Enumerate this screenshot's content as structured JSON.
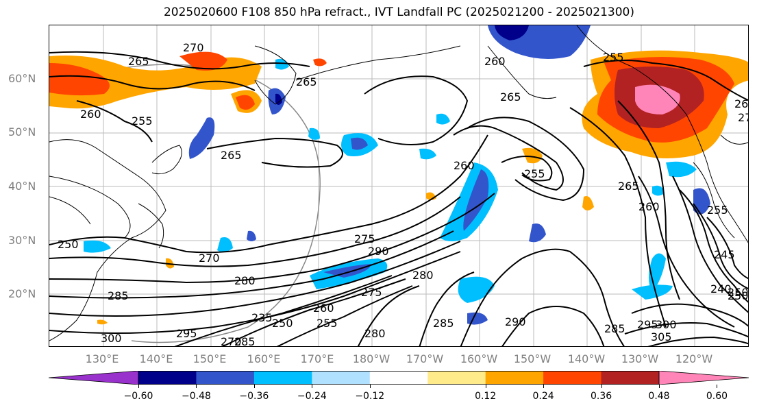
{
  "title": "2025020600 F108 850 hPa refract., IVT Landfall PC (2025021200 - 2025021300)",
  "lat_labels": [
    "60°N",
    "50°N",
    "40°N",
    "30°N",
    "20°N"
  ],
  "lon_labels": [
    "130°E",
    "140°E",
    "150°E",
    "160°E",
    "170°E",
    "180°W",
    "170°W",
    "160°W",
    "150°W",
    "140°W",
    "130°W",
    "120°W"
  ],
  "colorbar": {
    "colors": [
      "#9932cc",
      "#00008b",
      "#3355cc",
      "#00bfff",
      "#b0e2ff",
      "#ffffff",
      "#ffeb8a",
      "#ffa500",
      "#ff4500",
      "#b22222",
      "#ff85b8"
    ],
    "tick_labels": [
      "−0.60",
      "−0.48",
      "−0.36",
      "−0.24",
      "−0.12",
      "0.12",
      "0.24",
      "0.36",
      "0.48",
      "0.60"
    ]
  },
  "contour_labels": [
    {
      "text": "270"
    },
    {
      "text": "265"
    },
    {
      "text": "260"
    },
    {
      "text": "255"
    },
    {
      "text": "265"
    },
    {
      "text": "265"
    },
    {
      "text": "260"
    },
    {
      "text": "265"
    },
    {
      "text": "255"
    },
    {
      "text": "260"
    },
    {
      "text": "255"
    },
    {
      "text": "260"
    },
    {
      "text": "270"
    },
    {
      "text": "260"
    },
    {
      "text": "265"
    },
    {
      "text": "275"
    },
    {
      "text": "270"
    },
    {
      "text": "280"
    },
    {
      "text": "285"
    },
    {
      "text": "290"
    },
    {
      "text": "275"
    },
    {
      "text": "280"
    },
    {
      "text": "285"
    },
    {
      "text": "290"
    },
    {
      "text": "300"
    },
    {
      "text": "295"
    },
    {
      "text": "250"
    },
    {
      "text": "250"
    },
    {
      "text": "255"
    },
    {
      "text": "260"
    },
    {
      "text": "235"
    },
    {
      "text": "270"
    },
    {
      "text": "280"
    },
    {
      "text": "285"
    },
    {
      "text": "240"
    },
    {
      "text": "245"
    },
    {
      "text": "250"
    },
    {
      "text": "255"
    },
    {
      "text": "295"
    },
    {
      "text": "300"
    },
    {
      "text": "305"
    },
    {
      "text": "250"
    },
    {
      "text": "285"
    }
  ]
}
